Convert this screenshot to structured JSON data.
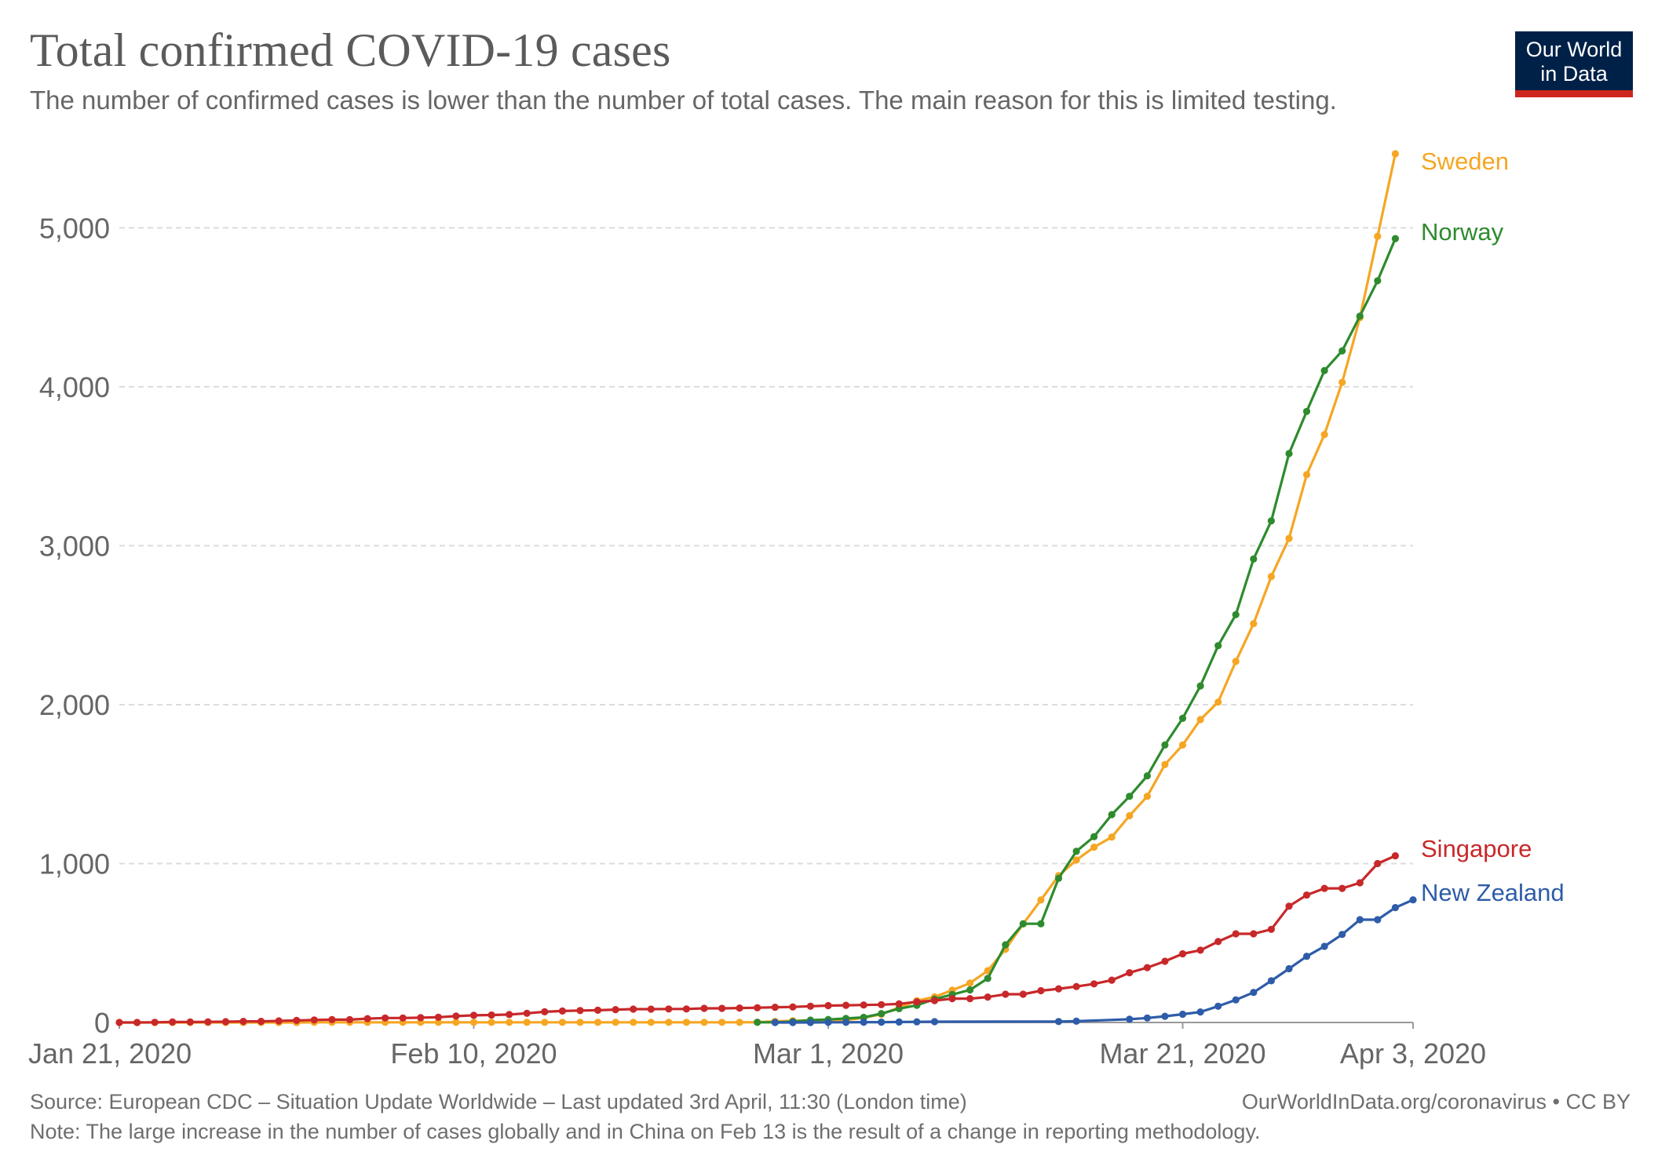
{
  "page": {
    "title": "Total confirmed COVID-19 cases",
    "subtitle": "The number of confirmed cases is lower than the number of total cases. The main reason for this is limited testing.",
    "logo": {
      "line1": "Our World",
      "line2": "in Data"
    },
    "source": "Source: European CDC – Situation Update Worldwide – Last updated 3rd April, 11:30 (London time)",
    "url": "OurWorldInData.org/coronavirus • CC BY",
    "note": "Note: The large increase in the number of cases globally and in China on Feb 13 is the result of a change in reporting methodology."
  },
  "chart_data": {
    "type": "line",
    "title": "Total confirmed COVID-19 cases",
    "subtitle": "The number of confirmed cases is lower than the number of total cases. The main reason for this is limited testing.",
    "x_start": "Jan 21, 2020",
    "x_end": "Apr 3, 2020",
    "xlim": [
      "2020-01-21",
      "2020-04-03"
    ],
    "ylim": [
      0,
      5466
    ],
    "x_ticks": [
      {
        "label": "Jan 21, 2020",
        "date": "2020-01-21"
      },
      {
        "label": "Feb 10, 2020",
        "date": "2020-02-10"
      },
      {
        "label": "Mar 1, 2020",
        "date": "2020-03-01"
      },
      {
        "label": "Mar 21, 2020",
        "date": "2020-03-21"
      },
      {
        "label": "Apr 3, 2020",
        "date": "2020-04-03"
      }
    ],
    "y_ticks": [
      {
        "label": "0",
        "value": 0
      },
      {
        "label": "1,000",
        "value": 1000
      },
      {
        "label": "2,000",
        "value": 2000
      },
      {
        "label": "3,000",
        "value": 3000
      },
      {
        "label": "4,000",
        "value": 4000
      },
      {
        "label": "5,000",
        "value": 5000
      }
    ],
    "grid": "horizontal dashed",
    "series": [
      {
        "name": "Sweden",
        "color": "#f5a623",
        "points": [
          [
            "2020-01-21",
            0
          ],
          [
            "2020-01-22",
            0
          ],
          [
            "2020-01-23",
            0
          ],
          [
            "2020-01-24",
            0
          ],
          [
            "2020-01-25",
            0
          ],
          [
            "2020-01-26",
            0
          ],
          [
            "2020-01-27",
            0
          ],
          [
            "2020-01-28",
            0
          ],
          [
            "2020-01-29",
            0
          ],
          [
            "2020-01-30",
            0
          ],
          [
            "2020-01-31",
            0
          ],
          [
            "2020-02-01",
            1
          ],
          [
            "2020-02-02",
            1
          ],
          [
            "2020-02-03",
            1
          ],
          [
            "2020-02-04",
            1
          ],
          [
            "2020-02-05",
            1
          ],
          [
            "2020-02-06",
            1
          ],
          [
            "2020-02-07",
            1
          ],
          [
            "2020-02-08",
            1
          ],
          [
            "2020-02-09",
            1
          ],
          [
            "2020-02-10",
            1
          ],
          [
            "2020-02-11",
            1
          ],
          [
            "2020-02-12",
            1
          ],
          [
            "2020-02-13",
            1
          ],
          [
            "2020-02-14",
            1
          ],
          [
            "2020-02-15",
            1
          ],
          [
            "2020-02-16",
            1
          ],
          [
            "2020-02-17",
            1
          ],
          [
            "2020-02-18",
            1
          ],
          [
            "2020-02-19",
            1
          ],
          [
            "2020-02-20",
            1
          ],
          [
            "2020-02-21",
            1
          ],
          [
            "2020-02-22",
            1
          ],
          [
            "2020-02-23",
            1
          ],
          [
            "2020-02-24",
            1
          ],
          [
            "2020-02-25",
            1
          ],
          [
            "2020-02-26",
            2
          ],
          [
            "2020-02-27",
            7
          ],
          [
            "2020-02-28",
            11
          ],
          [
            "2020-02-29",
            13
          ],
          [
            "2020-03-01",
            14
          ],
          [
            "2020-03-02",
            15
          ],
          [
            "2020-03-03",
            30
          ],
          [
            "2020-03-04",
            52
          ],
          [
            "2020-03-05",
            94
          ],
          [
            "2020-03-06",
            137
          ],
          [
            "2020-03-07",
            161
          ],
          [
            "2020-03-08",
            203
          ],
          [
            "2020-03-09",
            248
          ],
          [
            "2020-03-10",
            326
          ],
          [
            "2020-03-11",
            461
          ],
          [
            "2020-03-12",
            620
          ],
          [
            "2020-03-13",
            771
          ],
          [
            "2020-03-14",
            924
          ],
          [
            "2020-03-15",
            1022
          ],
          [
            "2020-03-16",
            1103
          ],
          [
            "2020-03-17",
            1167
          ],
          [
            "2020-03-18",
            1301
          ],
          [
            "2020-03-19",
            1423
          ],
          [
            "2020-03-20",
            1623
          ],
          [
            "2020-03-21",
            1746
          ],
          [
            "2020-03-22",
            1906
          ],
          [
            "2020-03-23",
            2016
          ],
          [
            "2020-03-24",
            2272
          ],
          [
            "2020-03-25",
            2510
          ],
          [
            "2020-03-26",
            2806
          ],
          [
            "2020-03-27",
            3046
          ],
          [
            "2020-03-28",
            3447
          ],
          [
            "2020-03-29",
            3700
          ],
          [
            "2020-03-30",
            4028
          ],
          [
            "2020-03-31",
            4435
          ],
          [
            "2020-04-01",
            4947
          ],
          [
            "2020-04-02",
            5466
          ]
        ]
      },
      {
        "name": "Norway",
        "color": "#2e8b2e",
        "points": [
          [
            "2020-02-26",
            1
          ],
          [
            "2020-02-27",
            1
          ],
          [
            "2020-02-28",
            6
          ],
          [
            "2020-02-29",
            15
          ],
          [
            "2020-03-01",
            19
          ],
          [
            "2020-03-02",
            25
          ],
          [
            "2020-03-03",
            32
          ],
          [
            "2020-03-04",
            56
          ],
          [
            "2020-03-05",
            87
          ],
          [
            "2020-03-06",
            108
          ],
          [
            "2020-03-07",
            147
          ],
          [
            "2020-03-08",
            176
          ],
          [
            "2020-03-09",
            205
          ],
          [
            "2020-03-10",
            277
          ],
          [
            "2020-03-11",
            489
          ],
          [
            "2020-03-12",
            621
          ],
          [
            "2020-03-13",
            621
          ],
          [
            "2020-03-14",
            907
          ],
          [
            "2020-03-15",
            1077
          ],
          [
            "2020-03-16",
            1169
          ],
          [
            "2020-03-17",
            1308
          ],
          [
            "2020-03-18",
            1423
          ],
          [
            "2020-03-19",
            1552
          ],
          [
            "2020-03-20",
            1746
          ],
          [
            "2020-03-21",
            1914
          ],
          [
            "2020-03-22",
            2118
          ],
          [
            "2020-03-23",
            2371
          ],
          [
            "2020-03-24",
            2566
          ],
          [
            "2020-03-25",
            2916
          ],
          [
            "2020-03-26",
            3156
          ],
          [
            "2020-03-27",
            3580
          ],
          [
            "2020-03-28",
            3845
          ],
          [
            "2020-03-29",
            4102
          ],
          [
            "2020-03-30",
            4226
          ],
          [
            "2020-03-31",
            4445
          ],
          [
            "2020-04-01",
            4667
          ],
          [
            "2020-04-02",
            4932
          ]
        ]
      },
      {
        "name": "Singapore",
        "color": "#c8282a",
        "points": [
          [
            "2020-01-21",
            0
          ],
          [
            "2020-01-22",
            0
          ],
          [
            "2020-01-23",
            1
          ],
          [
            "2020-01-24",
            3
          ],
          [
            "2020-01-25",
            3
          ],
          [
            "2020-01-26",
            4
          ],
          [
            "2020-01-27",
            5
          ],
          [
            "2020-01-28",
            7
          ],
          [
            "2020-01-29",
            7
          ],
          [
            "2020-01-30",
            10
          ],
          [
            "2020-01-31",
            13
          ],
          [
            "2020-02-01",
            16
          ],
          [
            "2020-02-02",
            18
          ],
          [
            "2020-02-03",
            18
          ],
          [
            "2020-02-04",
            24
          ],
          [
            "2020-02-05",
            28
          ],
          [
            "2020-02-06",
            28
          ],
          [
            "2020-02-07",
            30
          ],
          [
            "2020-02-08",
            33
          ],
          [
            "2020-02-09",
            40
          ],
          [
            "2020-02-10",
            45
          ],
          [
            "2020-02-11",
            47
          ],
          [
            "2020-02-12",
            50
          ],
          [
            "2020-02-13",
            58
          ],
          [
            "2020-02-14",
            67
          ],
          [
            "2020-02-15",
            72
          ],
          [
            "2020-02-16",
            75
          ],
          [
            "2020-02-17",
            77
          ],
          [
            "2020-02-18",
            81
          ],
          [
            "2020-02-19",
            84
          ],
          [
            "2020-02-20",
            84
          ],
          [
            "2020-02-21",
            85
          ],
          [
            "2020-02-22",
            85
          ],
          [
            "2020-02-23",
            89
          ],
          [
            "2020-02-24",
            89
          ],
          [
            "2020-02-25",
            91
          ],
          [
            "2020-02-26",
            93
          ],
          [
            "2020-02-27",
            96
          ],
          [
            "2020-02-28",
            98
          ],
          [
            "2020-02-29",
            102
          ],
          [
            "2020-03-01",
            106
          ],
          [
            "2020-03-02",
            108
          ],
          [
            "2020-03-03",
            110
          ],
          [
            "2020-03-04",
            112
          ],
          [
            "2020-03-05",
            117
          ],
          [
            "2020-03-06",
            130
          ],
          [
            "2020-03-07",
            138
          ],
          [
            "2020-03-08",
            150
          ],
          [
            "2020-03-09",
            150
          ],
          [
            "2020-03-10",
            160
          ],
          [
            "2020-03-11",
            178
          ],
          [
            "2020-03-12",
            178
          ],
          [
            "2020-03-13",
            200
          ],
          [
            "2020-03-14",
            212
          ],
          [
            "2020-03-15",
            226
          ],
          [
            "2020-03-16",
            243
          ],
          [
            "2020-03-17",
            266
          ],
          [
            "2020-03-18",
            313
          ],
          [
            "2020-03-19",
            345
          ],
          [
            "2020-03-20",
            385
          ],
          [
            "2020-03-21",
            432
          ],
          [
            "2020-03-22",
            455
          ],
          [
            "2020-03-23",
            509
          ],
          [
            "2020-03-24",
            558
          ],
          [
            "2020-03-25",
            558
          ],
          [
            "2020-03-26",
            586
          ],
          [
            "2020-03-27",
            732
          ],
          [
            "2020-03-28",
            802
          ],
          [
            "2020-03-29",
            844
          ],
          [
            "2020-03-30",
            844
          ],
          [
            "2020-03-31",
            879
          ],
          [
            "2020-04-01",
            1000
          ],
          [
            "2020-04-02",
            1049
          ]
        ]
      },
      {
        "name": "New Zealand",
        "color": "#2e5ca8",
        "points": [
          [
            "2020-02-27",
            0
          ],
          [
            "2020-02-28",
            0
          ],
          [
            "2020-02-29",
            0
          ],
          [
            "2020-03-01",
            1
          ],
          [
            "2020-03-02",
            1
          ],
          [
            "2020-03-03",
            2
          ],
          [
            "2020-03-04",
            2
          ],
          [
            "2020-03-05",
            3
          ],
          [
            "2020-03-06",
            4
          ],
          [
            "2020-03-07",
            5
          ],
          [
            "2020-03-14",
            6
          ],
          [
            "2020-03-15",
            8
          ],
          [
            "2020-03-18",
            20
          ],
          [
            "2020-03-19",
            28
          ],
          [
            "2020-03-20",
            39
          ],
          [
            "2020-03-21",
            52
          ],
          [
            "2020-03-22",
            66
          ],
          [
            "2020-03-23",
            102
          ],
          [
            "2020-03-24",
            142
          ],
          [
            "2020-03-25",
            189
          ],
          [
            "2020-03-26",
            262
          ],
          [
            "2020-03-27",
            338
          ],
          [
            "2020-03-28",
            416
          ],
          [
            "2020-03-29",
            479
          ],
          [
            "2020-03-30",
            554
          ],
          [
            "2020-03-31",
            647
          ],
          [
            "2020-04-01",
            647
          ],
          [
            "2020-04-02",
            723
          ],
          [
            "2020-04-03",
            772
          ]
        ]
      }
    ],
    "labels_inline": true
  }
}
